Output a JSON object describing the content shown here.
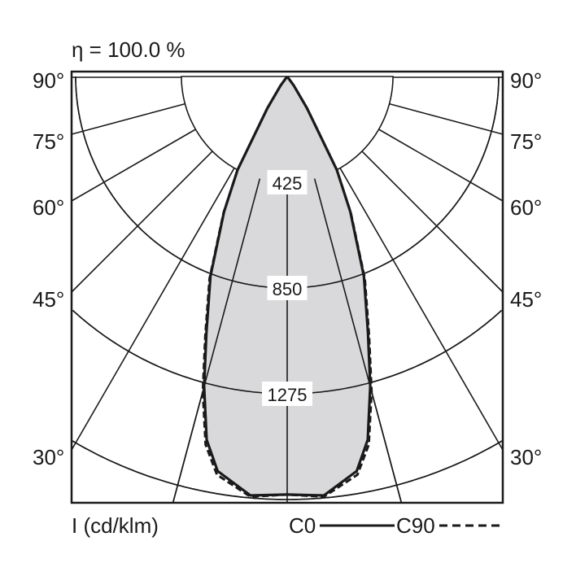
{
  "chart_data": {
    "type": "polar",
    "title": "η = 100.0 %",
    "unit_label": "I (cd/klm)",
    "radial_ticks": [
      425,
      850,
      1275
    ],
    "angle_ticks": [
      "90°",
      "75°",
      "60°",
      "45°",
      "30°"
    ],
    "angle_values": [
      90,
      75,
      60,
      45,
      30
    ],
    "legend": [
      {
        "name": "C0",
        "style": "solid"
      },
      {
        "name": "C90",
        "style": "dashed"
      }
    ],
    "fill_color": "#d9d9db",
    "line_color": "#1a1a1a",
    "series": [
      {
        "name": "C0",
        "angles": [
          0,
          5,
          10,
          12.5,
          15,
          17.5,
          21,
          25,
          28,
          32,
          36,
          40
        ],
        "values": [
          1680,
          1690,
          1610,
          1495,
          1290,
          1080,
          860,
          600,
          425,
          150,
          45,
          0
        ]
      },
      {
        "name": "C90",
        "angles": [
          0,
          5,
          10,
          12.5,
          15,
          17.5,
          21,
          25,
          28,
          32,
          36,
          40
        ],
        "values": [
          1680,
          1695,
          1625,
          1515,
          1310,
          1095,
          870,
          605,
          425,
          150,
          45,
          0
        ]
      }
    ]
  }
}
